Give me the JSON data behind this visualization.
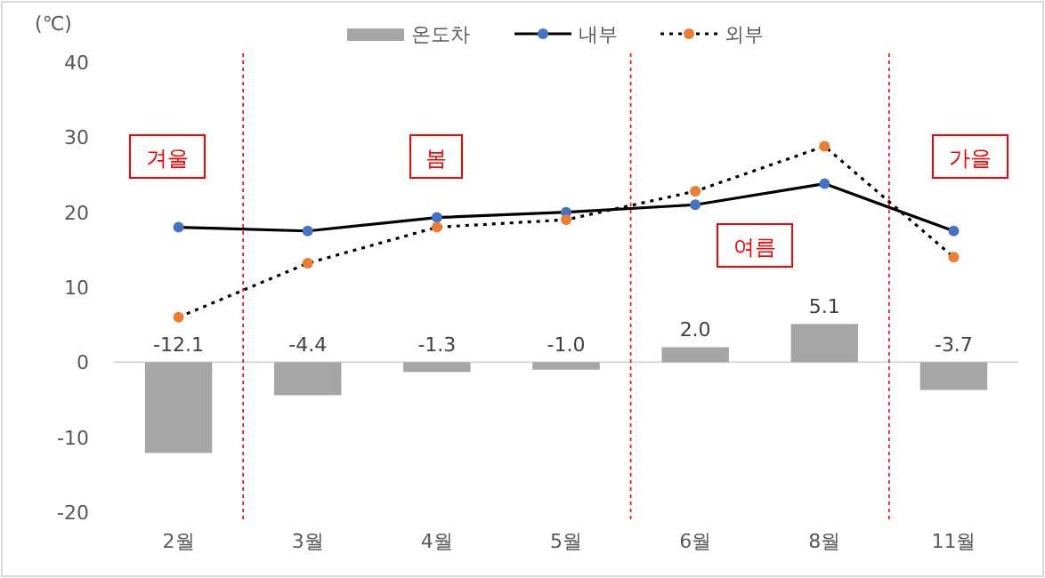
{
  "chart_data": {
    "type": "bar",
    "ylabel": "(℃)",
    "categories": [
      "2월",
      "3월",
      "4월",
      "5월",
      "6월",
      "8월",
      "11월"
    ],
    "ylim": [
      -20,
      40
    ],
    "yticks": [
      -20,
      -10,
      0,
      10,
      20,
      30,
      40
    ],
    "legend": "top",
    "grid": false,
    "series": [
      {
        "name": "온도차",
        "color": "#a6a6a6",
        "values": [
          -12.1,
          -4.4,
          -1.3,
          -1.0,
          2.0,
          5.1,
          -3.7
        ],
        "value_labels": [
          "-12.1",
          "-4.4",
          "-1.3",
          "-1.0",
          "2.0",
          "5.1",
          "-3.7"
        ]
      },
      {
        "name": "내부",
        "type": "line",
        "color": "#000000",
        "line_style": "solid",
        "marker": "circle",
        "colors": [
          "#4472c4",
          "#4472c4",
          "#4472c4",
          "#4472c4",
          "#4472c4",
          "#4472c4",
          "#4472c4"
        ],
        "values": [
          18.0,
          17.5,
          19.3,
          20.0,
          21.0,
          23.8,
          17.5
        ]
      },
      {
        "name": "외부",
        "type": "line",
        "color": "#000000",
        "line_style": "dotted",
        "marker": "circle",
        "colors": [
          "#ed7d31",
          "#ed7d31",
          "#ed7d31",
          "#ed7d31",
          "#ed7d31",
          "#ed7d31",
          "#ed7d31"
        ],
        "values": [
          6.0,
          13.2,
          18.0,
          19.0,
          22.8,
          28.8,
          14.0
        ]
      }
    ],
    "annotations": [
      "겨울",
      "봄",
      "여름",
      "가을"
    ]
  }
}
